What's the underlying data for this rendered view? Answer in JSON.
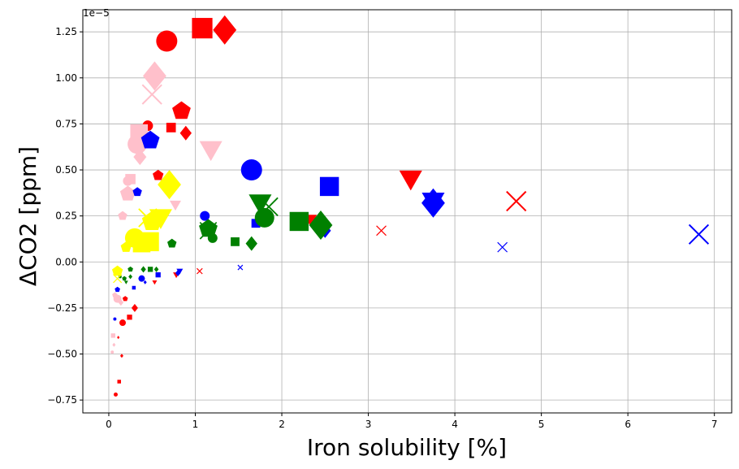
{
  "chart_data": {
    "type": "scatter",
    "xlabel": "Iron solubility [%]",
    "ylabel": "ΔCO2 [ppm]",
    "y_offset_text": "1e−5",
    "y_scale": 1e-05,
    "xlim": [
      -0.3,
      7.2
    ],
    "ylim": [
      -0.82,
      1.37
    ],
    "x_ticks": [
      0,
      1,
      2,
      3,
      4,
      5,
      6,
      7
    ],
    "x_tick_labels": [
      "0",
      "1",
      "2",
      "3",
      "4",
      "5",
      "6",
      "7"
    ],
    "y_ticks": [
      -0.75,
      -0.5,
      -0.25,
      0.0,
      0.25,
      0.5,
      0.75,
      1.0,
      1.25
    ],
    "y_tick_labels": [
      "−0.75",
      "−0.50",
      "−0.25",
      "0.00",
      "0.25",
      "0.50",
      "0.75",
      "1.00",
      "1.25"
    ],
    "grid": true,
    "colors": {
      "red": "#ff0000",
      "pink": "#ffc0cb",
      "blue": "#0000ff",
      "green": "#008000",
      "yellow": "#ffff00"
    },
    "points": [
      {
        "x": 0.67,
        "y": 1.2,
        "c": "red",
        "m": "circle",
        "s": 26
      },
      {
        "x": 1.08,
        "y": 1.27,
        "c": "red",
        "m": "square",
        "s": 28
      },
      {
        "x": 1.34,
        "y": 1.26,
        "c": "red",
        "m": "diamond",
        "s": 36
      },
      {
        "x": 0.84,
        "y": 0.82,
        "c": "red",
        "m": "pentagon",
        "s": 24
      },
      {
        "x": 0.45,
        "y": 0.74,
        "c": "red",
        "m": "circle",
        "s": 13
      },
      {
        "x": 0.72,
        "y": 0.73,
        "c": "red",
        "m": "square",
        "s": 13
      },
      {
        "x": 0.89,
        "y": 0.7,
        "c": "red",
        "m": "diamond",
        "s": 18
      },
      {
        "x": 0.57,
        "y": 0.47,
        "c": "red",
        "m": "pentagon",
        "s": 14
      },
      {
        "x": 3.49,
        "y": 0.45,
        "c": "red",
        "m": "triangle_down",
        "s": 28
      },
      {
        "x": 4.71,
        "y": 0.33,
        "c": "red",
        "m": "x",
        "s": 28
      },
      {
        "x": 2.33,
        "y": 0.23,
        "c": "red",
        "m": "triangle_down",
        "s": 16
      },
      {
        "x": 3.15,
        "y": 0.17,
        "c": "red",
        "m": "x",
        "s": 14
      },
      {
        "x": 1.05,
        "y": -0.05,
        "c": "red",
        "m": "x",
        "s": 8
      },
      {
        "x": 0.78,
        "y": -0.07,
        "c": "red",
        "m": "triangle_down",
        "s": 8
      },
      {
        "x": 0.53,
        "y": -0.11,
        "c": "red",
        "m": "triangle_down",
        "s": 6
      },
      {
        "x": 0.3,
        "y": -0.25,
        "c": "red",
        "m": "diamond",
        "s": 10
      },
      {
        "x": 0.19,
        "y": -0.2,
        "c": "red",
        "m": "pentagon",
        "s": 7
      },
      {
        "x": 0.16,
        "y": -0.33,
        "c": "red",
        "m": "circle",
        "s": 8
      },
      {
        "x": 0.24,
        "y": -0.3,
        "c": "red",
        "m": "square",
        "s": 7
      },
      {
        "x": 0.15,
        "y": -0.51,
        "c": "red",
        "m": "diamond",
        "s": 5
      },
      {
        "x": 0.11,
        "y": -0.41,
        "c": "red",
        "m": "diamond",
        "s": 4
      },
      {
        "x": 0.12,
        "y": -0.65,
        "c": "red",
        "m": "square",
        "s": 5
      },
      {
        "x": 0.08,
        "y": -0.72,
        "c": "red",
        "m": "circle",
        "s": 5
      },
      {
        "x": 0.53,
        "y": 1.01,
        "c": "pink",
        "m": "diamond",
        "s": 36
      },
      {
        "x": 0.5,
        "y": 0.91,
        "c": "pink",
        "m": "x",
        "s": 28
      },
      {
        "x": 0.35,
        "y": 0.7,
        "c": "pink",
        "m": "square",
        "s": 24
      },
      {
        "x": 0.33,
        "y": 0.64,
        "c": "pink",
        "m": "circle",
        "s": 24
      },
      {
        "x": 1.18,
        "y": 0.61,
        "c": "pink",
        "m": "triangle_down",
        "s": 28
      },
      {
        "x": 0.36,
        "y": 0.57,
        "c": "pink",
        "m": "diamond",
        "s": 20
      },
      {
        "x": 0.25,
        "y": 0.45,
        "c": "pink",
        "m": "square",
        "s": 14
      },
      {
        "x": 0.22,
        "y": 0.44,
        "c": "pink",
        "m": "circle",
        "s": 12
      },
      {
        "x": 0.22,
        "y": 0.37,
        "c": "pink",
        "m": "pentagon",
        "s": 20
      },
      {
        "x": 0.77,
        "y": 0.31,
        "c": "pink",
        "m": "triangle_down",
        "s": 14
      },
      {
        "x": 0.16,
        "y": 0.25,
        "c": "pink",
        "m": "pentagon",
        "s": 12
      },
      {
        "x": 0.1,
        "y": -0.2,
        "c": "pink",
        "m": "circle",
        "s": 10
      },
      {
        "x": 0.14,
        "y": -0.22,
        "c": "pink",
        "m": "diamond",
        "s": 8
      },
      {
        "x": 0.07,
        "y": -0.18,
        "c": "pink",
        "m": "pentagon",
        "s": 7
      },
      {
        "x": 0.05,
        "y": -0.4,
        "c": "pink",
        "m": "square",
        "s": 6
      },
      {
        "x": 0.06,
        "y": -0.45,
        "c": "pink",
        "m": "diamond",
        "s": 5
      },
      {
        "x": 0.04,
        "y": -0.49,
        "c": "pink",
        "m": "circle",
        "s": 4
      },
      {
        "x": 0.48,
        "y": 0.66,
        "c": "blue",
        "m": "pentagon",
        "s": 24
      },
      {
        "x": 1.65,
        "y": 0.5,
        "c": "blue",
        "m": "circle",
        "s": 26
      },
      {
        "x": 2.55,
        "y": 0.41,
        "c": "blue",
        "m": "square",
        "s": 26
      },
      {
        "x": 3.75,
        "y": 0.33,
        "c": "blue",
        "m": "triangle_down",
        "s": 28
      },
      {
        "x": 3.75,
        "y": 0.32,
        "c": "blue",
        "m": "diamond",
        "s": 36
      },
      {
        "x": 6.82,
        "y": 0.15,
        "c": "blue",
        "m": "x",
        "s": 28
      },
      {
        "x": 0.33,
        "y": 0.38,
        "c": "blue",
        "m": "pentagon",
        "s": 12
      },
      {
        "x": 1.11,
        "y": 0.25,
        "c": "blue",
        "m": "circle",
        "s": 12
      },
      {
        "x": 1.7,
        "y": 0.21,
        "c": "blue",
        "m": "square",
        "s": 12
      },
      {
        "x": 2.5,
        "y": 0.17,
        "c": "blue",
        "m": "diamond",
        "s": 18
      },
      {
        "x": 4.55,
        "y": 0.08,
        "c": "blue",
        "m": "x",
        "s": 14
      },
      {
        "x": 1.52,
        "y": -0.03,
        "c": "blue",
        "m": "x",
        "s": 7
      },
      {
        "x": 0.82,
        "y": -0.05,
        "c": "blue",
        "m": "triangle_down",
        "s": 8
      },
      {
        "x": 0.8,
        "y": -0.06,
        "c": "blue",
        "m": "diamond",
        "s": 8
      },
      {
        "x": 0.57,
        "y": -0.07,
        "c": "blue",
        "m": "square",
        "s": 7
      },
      {
        "x": 0.38,
        "y": -0.09,
        "c": "blue",
        "m": "circle",
        "s": 8
      },
      {
        "x": 0.29,
        "y": -0.14,
        "c": "blue",
        "m": "square",
        "s": 5
      },
      {
        "x": 0.42,
        "y": -0.11,
        "c": "blue",
        "m": "diamond",
        "s": 5
      },
      {
        "x": 0.1,
        "y": -0.15,
        "c": "blue",
        "m": "pentagon",
        "s": 7
      },
      {
        "x": 0.07,
        "y": -0.31,
        "c": "blue",
        "m": "circle",
        "s": 4
      },
      {
        "x": 1.8,
        "y": 0.24,
        "c": "green",
        "m": "circle",
        "s": 24
      },
      {
        "x": 1.75,
        "y": 0.32,
        "c": "green",
        "m": "triangle_down",
        "s": 28
      },
      {
        "x": 1.85,
        "y": 0.3,
        "c": "green",
        "m": "x",
        "s": 26
      },
      {
        "x": 2.2,
        "y": 0.22,
        "c": "green",
        "m": "square",
        "s": 26
      },
      {
        "x": 2.45,
        "y": 0.2,
        "c": "green",
        "m": "diamond",
        "s": 36
      },
      {
        "x": 1.15,
        "y": 0.18,
        "c": "green",
        "m": "pentagon",
        "s": 24
      },
      {
        "x": 1.15,
        "y": 0.17,
        "c": "green",
        "m": "x",
        "s": 24
      },
      {
        "x": 1.2,
        "y": 0.13,
        "c": "green",
        "m": "circle",
        "s": 12
      },
      {
        "x": 1.46,
        "y": 0.11,
        "c": "green",
        "m": "square",
        "s": 12
      },
      {
        "x": 1.65,
        "y": 0.1,
        "c": "green",
        "m": "diamond",
        "s": 18
      },
      {
        "x": 0.73,
        "y": 0.1,
        "c": "green",
        "m": "pentagon",
        "s": 12
      },
      {
        "x": 0.4,
        "y": -0.04,
        "c": "green",
        "m": "diamond",
        "s": 8
      },
      {
        "x": 0.48,
        "y": -0.04,
        "c": "green",
        "m": "square",
        "s": 7
      },
      {
        "x": 0.55,
        "y": -0.04,
        "c": "green",
        "m": "diamond",
        "s": 7
      },
      {
        "x": 0.25,
        "y": -0.04,
        "c": "green",
        "m": "pentagon",
        "s": 7
      },
      {
        "x": 0.25,
        "y": -0.08,
        "c": "green",
        "m": "diamond",
        "s": 6
      },
      {
        "x": 0.18,
        "y": -0.09,
        "c": "green",
        "m": "pentagon",
        "s": 6
      },
      {
        "x": 0.13,
        "y": -0.08,
        "c": "green",
        "m": "circle",
        "s": 4
      },
      {
        "x": 0.2,
        "y": -0.11,
        "c": "green",
        "m": "triangle_down",
        "s": 5
      },
      {
        "x": 0.7,
        "y": 0.42,
        "c": "yellow",
        "m": "diamond",
        "s": 36
      },
      {
        "x": 0.5,
        "y": 0.22,
        "c": "yellow",
        "m": "pentagon",
        "s": 26
      },
      {
        "x": 0.6,
        "y": 0.24,
        "c": "yellow",
        "m": "triangle_down",
        "s": 28
      },
      {
        "x": 0.45,
        "y": 0.24,
        "c": "yellow",
        "m": "x",
        "s": 26
      },
      {
        "x": 0.3,
        "y": 0.13,
        "c": "yellow",
        "m": "circle",
        "s": 24
      },
      {
        "x": 0.38,
        "y": 0.1,
        "c": "yellow",
        "m": "square",
        "s": 24
      },
      {
        "x": 0.47,
        "y": 0.11,
        "c": "yellow",
        "m": "square",
        "s": 26
      },
      {
        "x": 0.2,
        "y": 0.08,
        "c": "yellow",
        "m": "pentagon",
        "s": 14
      },
      {
        "x": 0.1,
        "y": -0.05,
        "c": "yellow",
        "m": "pentagon",
        "s": 14
      },
      {
        "x": 0.1,
        "y": -0.09,
        "c": "yellow",
        "m": "x",
        "s": 12
      }
    ]
  }
}
